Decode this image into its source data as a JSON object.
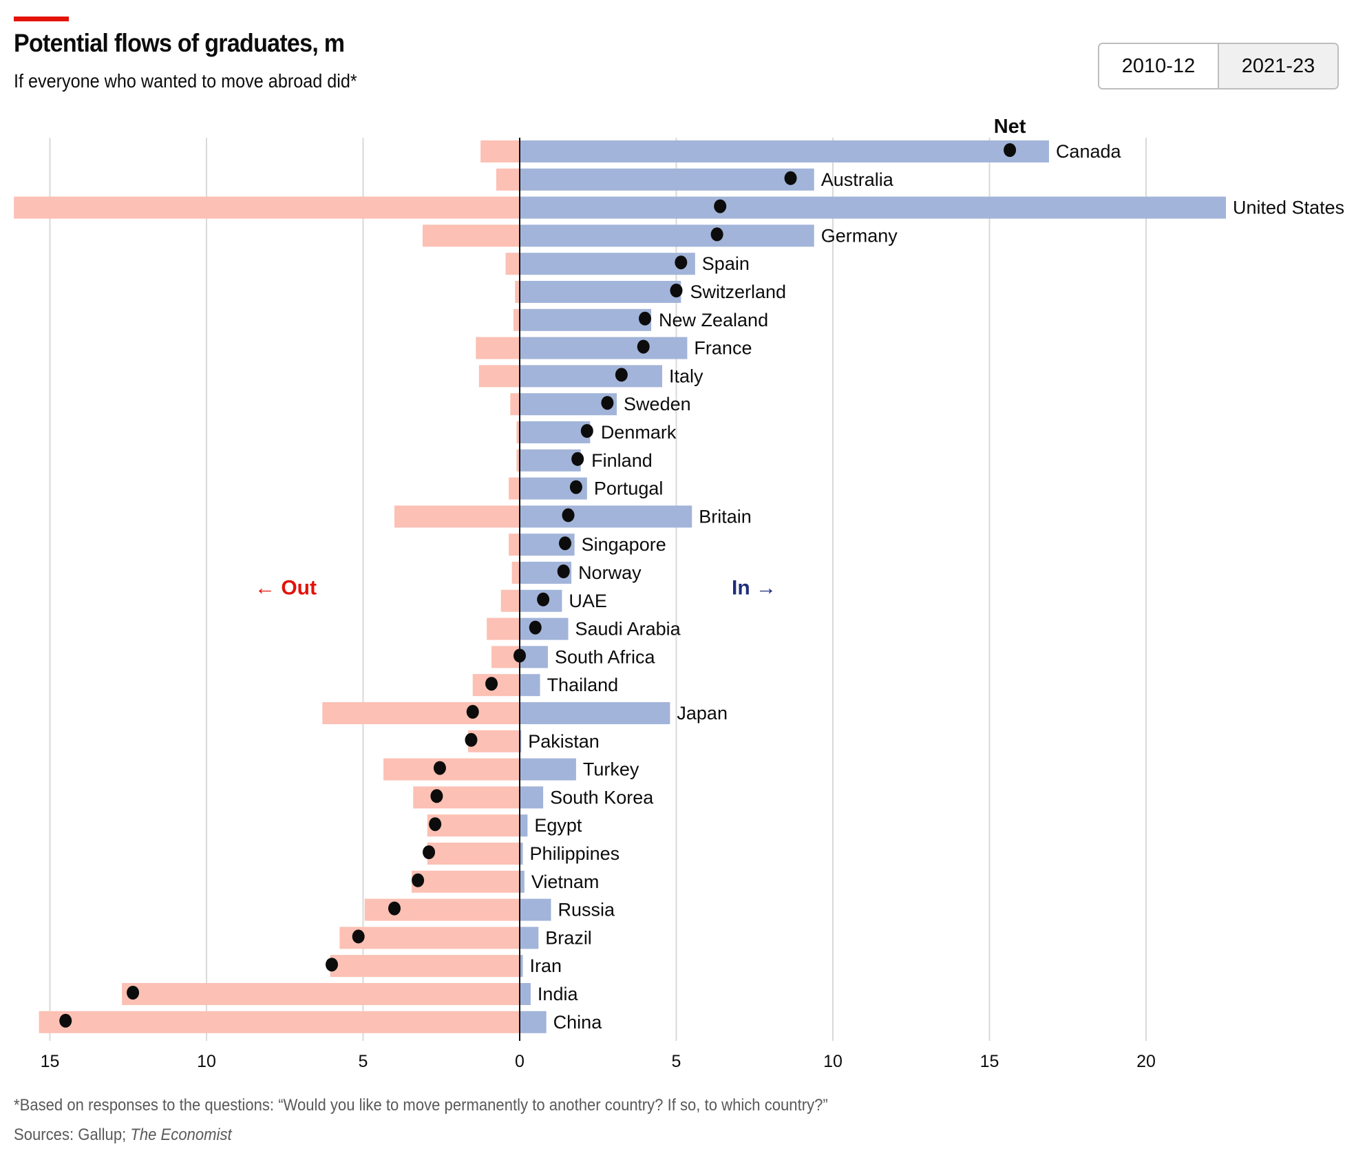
{
  "header": {
    "title": "Potential flows of graduates, m",
    "subtitle": "If everyone who wanted to move abroad did*"
  },
  "toggle": {
    "options": [
      "2010-12",
      "2021-23"
    ],
    "selected": "2021-23"
  },
  "footer": {
    "footnote": "*Based on responses to the questions: “Would you like to move permanently to another country? If so, to which country?”",
    "sources_prefix": "Sources: Gallup; ",
    "sources_italic": "The Economist"
  },
  "colors": {
    "out": "#fcc0b4",
    "in": "#a2b4d9",
    "net": "#0c0c0c",
    "out_label": "#e3120b",
    "in_label": "#1f2e7a",
    "brand_red": "#e3120b",
    "grid": "#d9d9d9"
  },
  "chart_data": {
    "type": "bar",
    "title": "Potential flows of graduates, m",
    "subtitle": "If everyone who wanted to move abroad did*",
    "xlabel": "",
    "ylabel": "",
    "xlim": [
      -16.2,
      22.6
    ],
    "xticks": [
      -15,
      -10,
      -5,
      0,
      5,
      10,
      15,
      20
    ],
    "xtick_labels": [
      "15",
      "10",
      "5",
      "0",
      "5",
      "10",
      "15",
      "20"
    ],
    "grid": true,
    "annotations": {
      "out_label": "← Out",
      "in_label": "In →",
      "net_label": "Net"
    },
    "categories": [
      "Canada",
      "Australia",
      "United States",
      "Germany",
      "Spain",
      "Switzerland",
      "New Zealand",
      "France",
      "Italy",
      "Sweden",
      "Denmark",
      "Finland",
      "Portugal",
      "Britain",
      "Singapore",
      "Norway",
      "UAE",
      "Saudi Arabia",
      "South Africa",
      "Thailand",
      "Japan",
      "Pakistan",
      "Turkey",
      "South Korea",
      "Egypt",
      "Philippines",
      "Vietnam",
      "Russia",
      "Brazil",
      "Iran",
      "India",
      "China"
    ],
    "series": [
      {
        "name": "Out",
        "values": [
          1.25,
          0.75,
          16.15,
          3.1,
          0.45,
          0.15,
          0.2,
          1.4,
          1.3,
          0.3,
          0.1,
          0.1,
          0.35,
          4.0,
          0.35,
          0.25,
          0.6,
          1.05,
          0.9,
          1.5,
          6.3,
          1.65,
          4.35,
          3.4,
          2.95,
          2.95,
          3.45,
          4.95,
          5.75,
          6.05,
          12.7,
          15.35
        ]
      },
      {
        "name": "In",
        "values": [
          16.9,
          9.4,
          22.55,
          9.4,
          5.6,
          5.15,
          4.2,
          5.35,
          4.55,
          3.1,
          2.25,
          1.95,
          2.15,
          5.5,
          1.75,
          1.65,
          1.35,
          1.55,
          0.9,
          0.65,
          4.8,
          0.05,
          1.8,
          0.75,
          0.25,
          0.1,
          0.15,
          1.0,
          0.6,
          0.1,
          0.35,
          0.85
        ]
      },
      {
        "name": "Net",
        "values": [
          15.65,
          8.65,
          6.4,
          6.3,
          5.15,
          5.0,
          4.0,
          3.95,
          3.25,
          2.8,
          2.15,
          1.85,
          1.8,
          1.55,
          1.45,
          1.4,
          0.75,
          0.5,
          0.0,
          -0.9,
          -1.5,
          -1.55,
          -2.55,
          -2.65,
          -2.7,
          -2.9,
          -3.25,
          -4.0,
          -5.15,
          -6.0,
          -12.35,
          -14.5
        ]
      }
    ],
    "legend": "none"
  }
}
